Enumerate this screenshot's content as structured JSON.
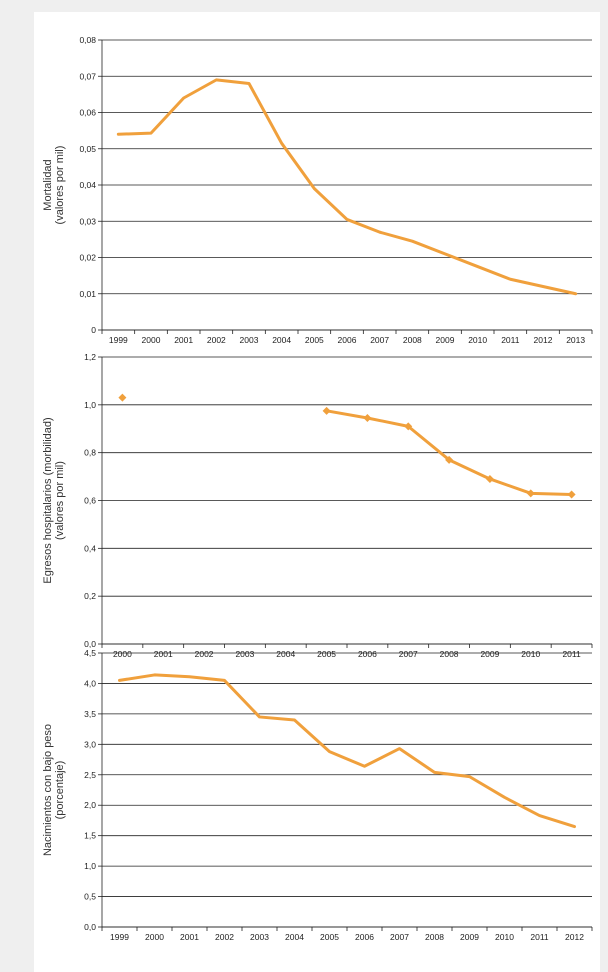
{
  "colors": {
    "series": "#F0A03C",
    "grid": "#222222",
    "background": "#efefef",
    "panel": "#ffffff"
  },
  "chart_data": [
    {
      "type": "line",
      "ylabel": [
        "Mortalidad",
        "(valores por mil)"
      ],
      "categories": [
        "1999",
        "2000",
        "2001",
        "2002",
        "2003",
        "2004",
        "2005",
        "2006",
        "2007",
        "2008",
        "2009",
        "2010",
        "2011",
        "2012",
        "2013"
      ],
      "values": [
        0.054,
        0.0543,
        0.064,
        0.069,
        0.068,
        0.0515,
        0.039,
        0.0305,
        0.027,
        0.0245,
        0.021,
        0.0175,
        0.014,
        0.012,
        0.01
      ],
      "yticks": [
        "0",
        "0,01",
        "0,02",
        "0,03",
        "0,04",
        "0,05",
        "0,06",
        "0,07",
        "0,08"
      ],
      "ylim": [
        0,
        0.08
      ],
      "markers": false,
      "grid": true
    },
    {
      "type": "line",
      "ylabel": [
        "Egresos hospitalarios (morbilidad)",
        "(valores por mil)"
      ],
      "categories": [
        "2000",
        "2001",
        "2002",
        "2003",
        "2004",
        "2005",
        "2006",
        "2007",
        "2008",
        "2009",
        "2010",
        "2011"
      ],
      "values": [
        1.03,
        null,
        null,
        null,
        null,
        0.975,
        0.945,
        0.91,
        0.77,
        0.69,
        0.63,
        0.625
      ],
      "yticks": [
        "0,0",
        "0,2",
        "0,4",
        "0,6",
        "0,8",
        "1,0",
        "1,2"
      ],
      "ylim": [
        0,
        1.2
      ],
      "markers": true,
      "grid": true
    },
    {
      "type": "line",
      "ylabel": [
        "Nacimientos con bajo peso",
        "(porcentaje)"
      ],
      "categories": [
        "1999",
        "2000",
        "2001",
        "2002",
        "2003",
        "2004",
        "2005",
        "2006",
        "2007",
        "2008",
        "2009",
        "2010",
        "2011",
        "2012"
      ],
      "values": [
        4.05,
        4.14,
        4.11,
        4.05,
        3.45,
        3.4,
        2.88,
        2.64,
        2.93,
        2.54,
        2.47,
        2.13,
        1.83,
        1.65
      ],
      "yticks": [
        "0,0",
        "0,5",
        "1,0",
        "1,5",
        "2,0",
        "2,5",
        "3,0",
        "3,5",
        "4,0",
        "4,5"
      ],
      "ylim": [
        0,
        4.5
      ],
      "markers": false,
      "grid": true
    }
  ]
}
